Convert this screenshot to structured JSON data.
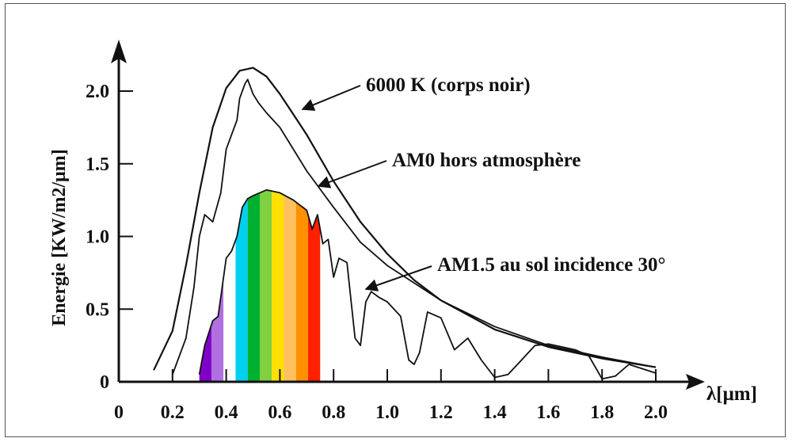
{
  "chart_data": {
    "type": "line",
    "ylabel": "Energie [KW/m2/μm]",
    "xlabel": "λ[μm]",
    "xlim": [
      0,
      2.0
    ],
    "ylim": [
      0,
      2.2
    ],
    "x_ticks": [
      "0",
      "0.2",
      "0.4",
      "0.6",
      "0.8",
      "1.0",
      "1.2",
      "1.4",
      "1.6",
      "1.8",
      "2.0"
    ],
    "y_ticks": [
      "0",
      "0.5",
      "1.0",
      "1.5",
      "2.0"
    ],
    "annotations": [
      {
        "text": "6000 K (corps noir)",
        "points_to": "blackbody"
      },
      {
        "text": "AM0 hors atmosphère",
        "points_to": "am0"
      },
      {
        "text": "AM1.5 au sol incidence 30°",
        "points_to": "am15"
      }
    ],
    "series": [
      {
        "id": "blackbody",
        "x": [
          0.13,
          0.2,
          0.25,
          0.3,
          0.35,
          0.4,
          0.45,
          0.5,
          0.55,
          0.6,
          0.65,
          0.7,
          0.8,
          0.9,
          1.0,
          1.1,
          1.2,
          1.4,
          1.6,
          1.8,
          2.0
        ],
        "y": [
          0.08,
          0.35,
          0.8,
          1.3,
          1.75,
          2.02,
          2.14,
          2.16,
          2.1,
          1.98,
          1.84,
          1.7,
          1.38,
          1.1,
          0.88,
          0.7,
          0.56,
          0.36,
          0.24,
          0.16,
          0.1
        ]
      },
      {
        "id": "am0",
        "x": [
          0.2,
          0.25,
          0.28,
          0.3,
          0.32,
          0.35,
          0.38,
          0.4,
          0.42,
          0.44,
          0.45,
          0.47,
          0.48,
          0.5,
          0.52,
          0.55,
          0.6,
          0.65,
          0.7,
          0.8,
          0.9,
          1.0,
          1.2,
          1.4,
          1.6,
          1.8,
          2.0
        ],
        "y": [
          0.05,
          0.3,
          0.65,
          1.0,
          1.15,
          1.1,
          1.3,
          1.6,
          1.7,
          1.8,
          1.95,
          2.05,
          2.08,
          1.98,
          1.92,
          1.85,
          1.75,
          1.6,
          1.45,
          1.2,
          0.96,
          0.8,
          0.56,
          0.38,
          0.25,
          0.17,
          0.1
        ]
      },
      {
        "id": "am15",
        "x": [
          0.3,
          0.32,
          0.35,
          0.37,
          0.4,
          0.42,
          0.44,
          0.46,
          0.48,
          0.5,
          0.55,
          0.6,
          0.65,
          0.7,
          0.72,
          0.74,
          0.76,
          0.78,
          0.8,
          0.82,
          0.85,
          0.88,
          0.9,
          0.92,
          0.94,
          0.97,
          1.0,
          1.05,
          1.08,
          1.1,
          1.12,
          1.15,
          1.2,
          1.25,
          1.3,
          1.35,
          1.4,
          1.45,
          1.5,
          1.55,
          1.6,
          1.7,
          1.75,
          1.8,
          1.85,
          1.9,
          1.95,
          2.0
        ],
        "y": [
          0.05,
          0.25,
          0.42,
          0.45,
          0.85,
          0.9,
          1.0,
          1.2,
          1.26,
          1.28,
          1.32,
          1.3,
          1.25,
          1.18,
          1.05,
          1.15,
          0.95,
          0.98,
          0.72,
          0.85,
          0.82,
          0.3,
          0.25,
          0.55,
          0.62,
          0.58,
          0.55,
          0.45,
          0.15,
          0.12,
          0.2,
          0.48,
          0.44,
          0.22,
          0.3,
          0.15,
          0.03,
          0.05,
          0.15,
          0.25,
          0.26,
          0.22,
          0.18,
          0.02,
          0.04,
          0.12,
          0.09,
          0.06
        ]
      }
    ],
    "visible_spectrum_colors": [
      "#8000c8",
      "#b070e0",
      "#ffffff",
      "#00d0f0",
      "#00b030",
      "#80d040",
      "#ffe000",
      "#ffc060",
      "#ff9000",
      "#ff2000"
    ]
  }
}
